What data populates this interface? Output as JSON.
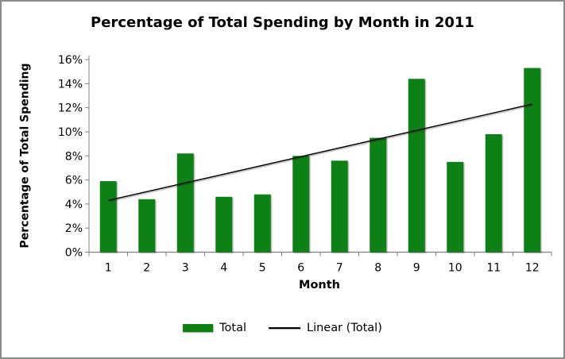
{
  "chart_data": {
    "type": "bar",
    "title": "Percentage of Total Spending by Month in 2011",
    "xlabel": "Month",
    "ylabel": "Percentage of Total Spending",
    "categories": [
      "1",
      "2",
      "3",
      "4",
      "5",
      "6",
      "7",
      "8",
      "9",
      "10",
      "11",
      "12"
    ],
    "series": [
      {
        "name": "Total",
        "kind": "bar",
        "color": "#0e8112",
        "values": [
          5.9,
          4.4,
          8.2,
          4.6,
          4.8,
          8.0,
          7.6,
          9.5,
          14.4,
          7.5,
          9.8,
          15.3
        ]
      },
      {
        "name": "Linear (Total)",
        "kind": "trendline",
        "color": "#000000",
        "trend": {
          "start_value": 4.3,
          "end_value": 12.3
        }
      }
    ],
    "y_axis": {
      "min": 0,
      "max": 16,
      "step": 2,
      "tick_format": "{v}%"
    },
    "x_axis": {
      "tick_labels": [
        "1",
        "2",
        "3",
        "4",
        "5",
        "6",
        "7",
        "8",
        "9",
        "10",
        "11",
        "12"
      ]
    },
    "grid": true,
    "legend_position": "bottom",
    "colors": {
      "grid": "#9c9c9c",
      "axis": "#808080",
      "text": "#000000",
      "background": "#ffffff",
      "figure_border": "#8a8a8a"
    }
  }
}
